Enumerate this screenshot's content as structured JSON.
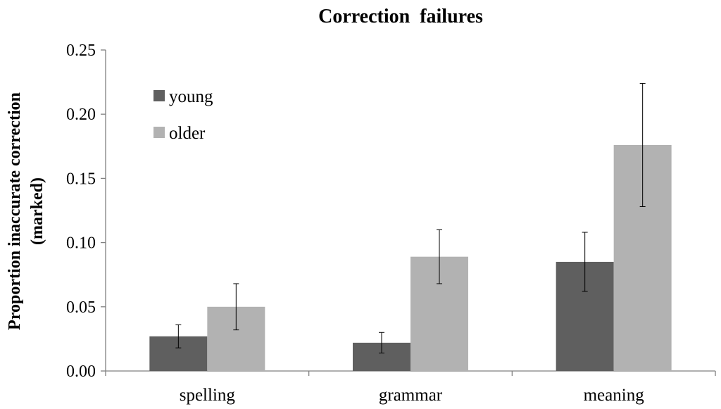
{
  "chart_data": {
    "type": "bar",
    "title": "Correction  failures",
    "ylabel_lines": [
      "Proportion inaccurate correction",
      "(marked)"
    ],
    "xlabel": "",
    "categories": [
      "spelling",
      "grammar",
      "meaning"
    ],
    "ylim": [
      0,
      0.25
    ],
    "yticks": [
      0.0,
      0.05,
      0.1,
      0.15,
      0.2,
      0.25
    ],
    "ytick_labels": [
      "0.00",
      "0.05",
      "0.10",
      "0.15",
      "0.20",
      "0.25"
    ],
    "legend_position": "top-left",
    "grid": false,
    "series": [
      {
        "name": "young",
        "color": "#5f5f5f",
        "values": [
          0.027,
          0.022,
          0.085
        ],
        "error": [
          0.009,
          0.008,
          0.023
        ]
      },
      {
        "name": "older",
        "color": "#b2b2b2",
        "values": [
          0.05,
          0.089,
          0.176
        ],
        "error": [
          0.018,
          0.021,
          0.048
        ]
      }
    ]
  }
}
